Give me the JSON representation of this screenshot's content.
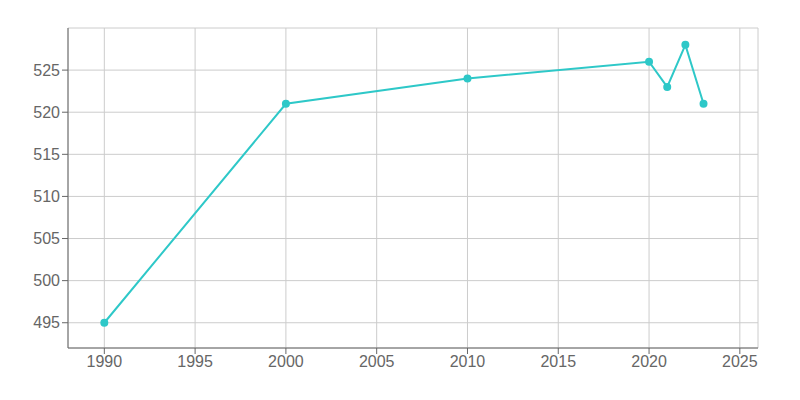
{
  "chart_data": {
    "type": "line",
    "x": [
      1990,
      2000,
      2010,
      2020,
      2021,
      2022,
      2023
    ],
    "values": [
      495,
      521,
      524,
      526,
      523,
      528,
      521
    ],
    "color": "#2ec8c8",
    "marker": "circle",
    "xlim": [
      1988,
      2026
    ],
    "ylim": [
      492,
      530
    ],
    "xticks": [
      1990,
      1995,
      2000,
      2005,
      2010,
      2015,
      2020,
      2025
    ],
    "yticks": [
      495,
      500,
      505,
      510,
      515,
      520,
      525
    ],
    "grid": true
  }
}
